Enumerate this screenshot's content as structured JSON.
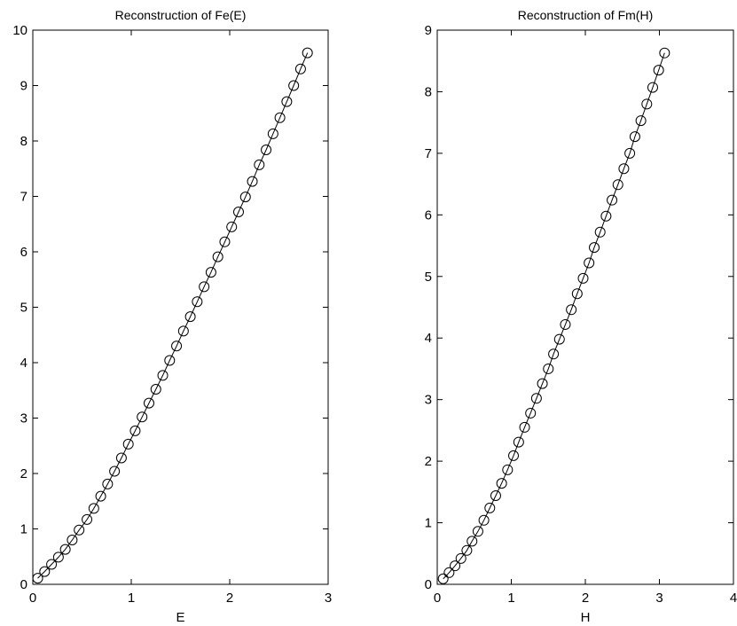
{
  "chart_data": [
    {
      "type": "line",
      "title": "Reconstruction of Fe(E)",
      "xlabel": "E",
      "ylabel": "",
      "xlim": [
        0,
        3
      ],
      "ylim": [
        0,
        10
      ],
      "xticks": [
        "0",
        "1",
        "2",
        "3"
      ],
      "yticks": [
        "0",
        "1",
        "2",
        "3",
        "4",
        "5",
        "6",
        "7",
        "8",
        "9",
        "10"
      ],
      "grid": false,
      "marker": "circle",
      "series": [
        {
          "x": [
            0.05,
            0.12,
            0.19,
            0.26,
            0.33,
            0.4,
            0.47,
            0.55,
            0.62,
            0.69,
            0.76,
            0.83,
            0.9,
            0.97,
            1.04,
            1.11,
            1.18,
            1.25,
            1.32,
            1.39,
            1.46,
            1.53,
            1.6,
            1.67,
            1.74,
            1.81,
            1.88,
            1.95,
            2.02,
            2.09,
            2.16,
            2.23,
            2.3,
            2.37,
            2.44,
            2.51,
            2.58,
            2.65,
            2.72,
            2.79
          ],
          "y": [
            0.11,
            0.23,
            0.36,
            0.49,
            0.63,
            0.8,
            0.98,
            1.17,
            1.37,
            1.59,
            1.81,
            2.04,
            2.28,
            2.53,
            2.77,
            3.02,
            3.27,
            3.52,
            3.77,
            4.04,
            4.3,
            4.57,
            4.83,
            5.1,
            5.37,
            5.63,
            5.91,
            6.18,
            6.45,
            6.72,
            6.99,
            7.27,
            7.57,
            7.84,
            8.13,
            8.42,
            8.71,
            9.0,
            9.3,
            9.59
          ]
        }
      ]
    },
    {
      "type": "line",
      "title": "Reconstruction of Fm(H)",
      "xlabel": "H",
      "ylabel": "",
      "xlim": [
        0,
        4
      ],
      "ylim": [
        0,
        9
      ],
      "xticks": [
        "0",
        "1",
        "2",
        "3",
        "4"
      ],
      "yticks": [
        "0",
        "1",
        "2",
        "3",
        "4",
        "5",
        "6",
        "7",
        "8",
        "9"
      ],
      "grid": false,
      "marker": "circle",
      "series": [
        {
          "x": [
            0.08,
            0.16,
            0.24,
            0.32,
            0.4,
            0.47,
            0.55,
            0.63,
            0.71,
            0.79,
            0.87,
            0.95,
            1.03,
            1.1,
            1.18,
            1.26,
            1.34,
            1.42,
            1.5,
            1.57,
            1.65,
            1.73,
            1.81,
            1.89,
            1.97,
            2.05,
            2.12,
            2.2,
            2.28,
            2.36,
            2.44,
            2.52,
            2.6,
            2.67,
            2.75,
            2.83,
            2.91,
            2.99,
            3.07
          ],
          "y": [
            0.09,
            0.19,
            0.3,
            0.42,
            0.55,
            0.7,
            0.86,
            1.04,
            1.24,
            1.44,
            1.64,
            1.86,
            2.09,
            2.31,
            2.55,
            2.78,
            3.02,
            3.26,
            3.5,
            3.74,
            3.98,
            4.22,
            4.46,
            4.72,
            4.97,
            5.22,
            5.47,
            5.72,
            5.98,
            6.24,
            6.49,
            6.75,
            7.0,
            7.27,
            7.53,
            7.8,
            8.07,
            8.35,
            8.63
          ]
        }
      ]
    }
  ]
}
